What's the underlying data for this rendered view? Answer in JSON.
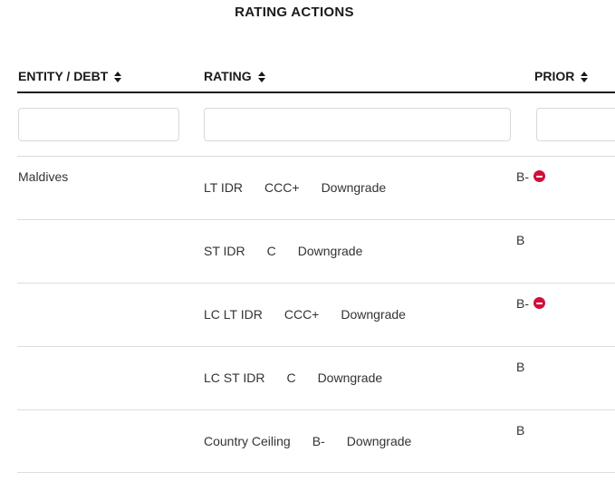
{
  "page": {
    "title": "RATING ACTIONS"
  },
  "colors": {
    "accent_red": "#d0103a",
    "header_text": "#1a1a1a",
    "body_text": "#333333",
    "divider": "#dcdcdc",
    "header_rule": "#1a1a1a"
  },
  "table": {
    "columns": [
      {
        "label": "ENTITY / DEBT",
        "sortable": true
      },
      {
        "label": "RATING",
        "sortable": true
      },
      {
        "label": "PRIOR",
        "sortable": true
      }
    ],
    "filters": {
      "entity_placeholder": "",
      "entity_value": "",
      "rating_placeholder": "",
      "rating_value": "",
      "prior_placeholder": "",
      "prior_value": ""
    },
    "rows": [
      {
        "entity": "Maldives",
        "type": "LT IDR",
        "rating": "CCC+",
        "action": "Downgrade",
        "prior": "B-",
        "prior_icon": true
      },
      {
        "entity": "",
        "type": "ST IDR",
        "rating": "C",
        "action": "Downgrade",
        "prior": "B",
        "prior_icon": false
      },
      {
        "entity": "",
        "type": "LC LT IDR",
        "rating": "CCC+",
        "action": "Downgrade",
        "prior": "B-",
        "prior_icon": true
      },
      {
        "entity": "",
        "type": "LC ST IDR",
        "rating": "C",
        "action": "Downgrade",
        "prior": "B",
        "prior_icon": false
      },
      {
        "entity": "",
        "type": "Country Ceiling",
        "rating": "B-",
        "action": "Downgrade",
        "prior": "B",
        "prior_icon": false
      }
    ]
  }
}
